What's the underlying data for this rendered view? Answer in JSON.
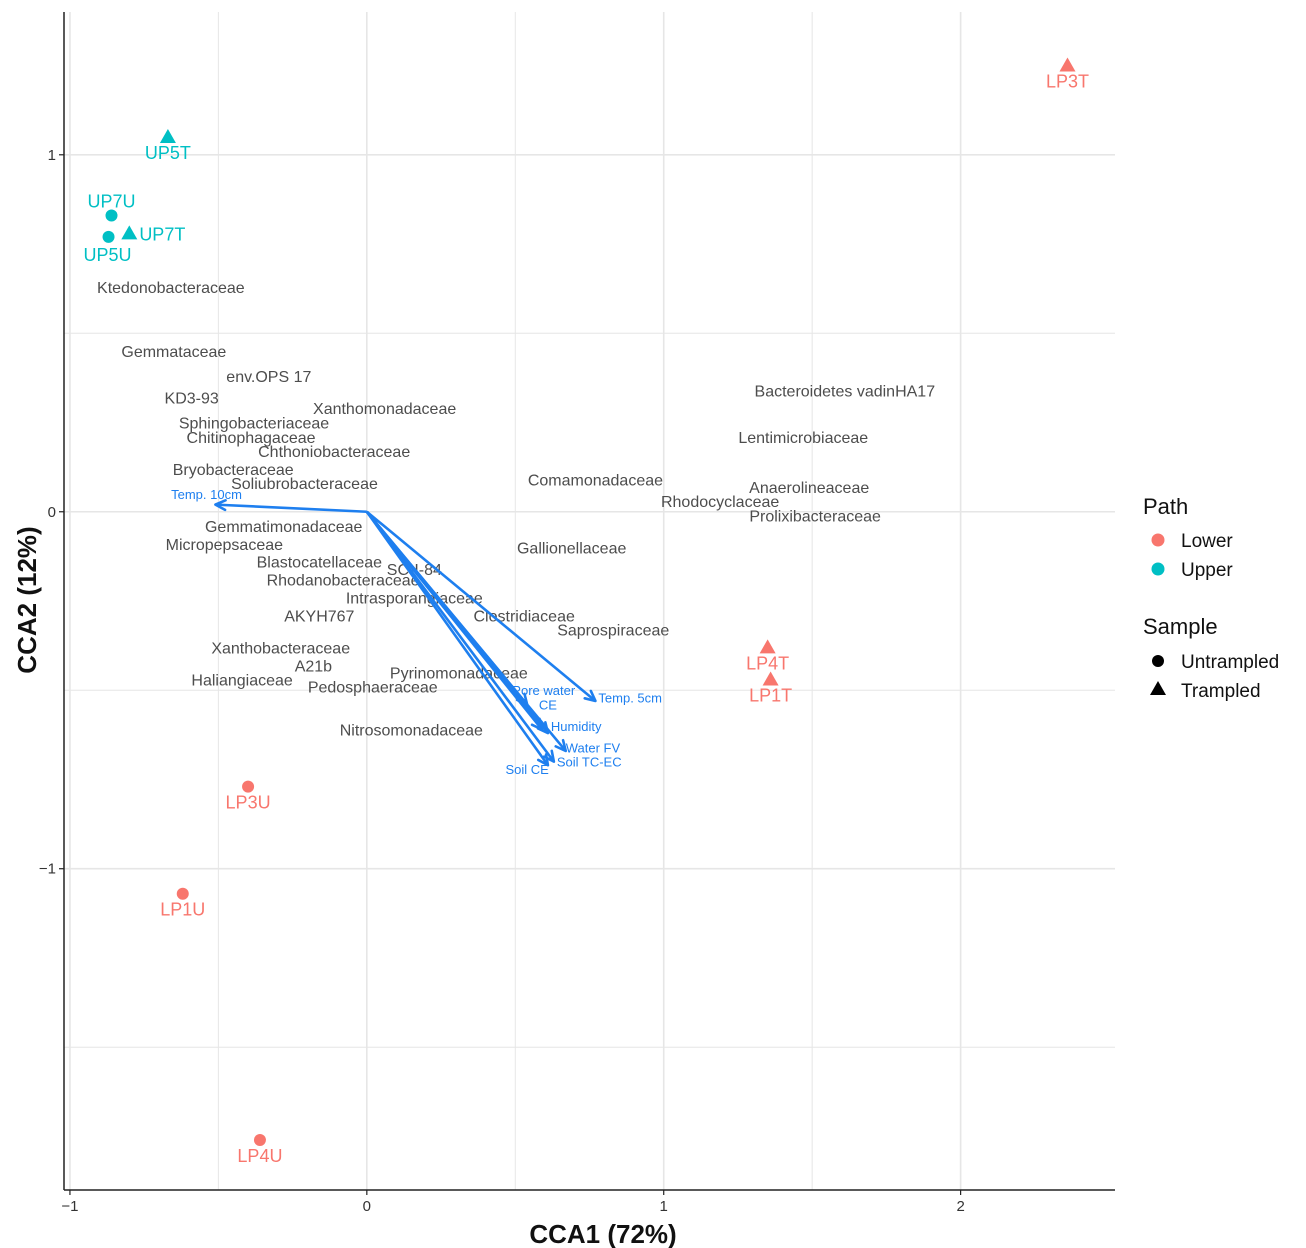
{
  "chart_data": {
    "type": "scatter",
    "xlabel": "CCA1 (72%)",
    "ylabel": "CCA2 (12%)",
    "xlim": [
      -1.02,
      2.52
    ],
    "ylim": [
      -1.9,
      1.4
    ],
    "x_ticks": [
      {
        "value": -1,
        "label": "−1"
      },
      {
        "value": 0,
        "label": "0"
      },
      {
        "value": 1,
        "label": "1"
      },
      {
        "value": 2,
        "label": "2"
      }
    ],
    "y_ticks": [
      {
        "value": -1,
        "label": "−1"
      },
      {
        "value": 0,
        "label": "0"
      },
      {
        "value": 1,
        "label": "1"
      }
    ],
    "x_minor": [
      -0.5,
      0.5,
      1.5
    ],
    "y_minor": [
      -1.5,
      -0.5,
      0.5
    ],
    "grid": true,
    "colors": {
      "Lower": "#F8766D",
      "Upper": "#00BFC4",
      "arrow": "#1E7FEF",
      "taxon": "#4d4d4d",
      "grid": "#e6e6e6"
    },
    "samples": [
      {
        "label": "LP3T",
        "x": 2.36,
        "y": 1.25,
        "path": "Lower",
        "sample": "Trampled"
      },
      {
        "label": "UP5T",
        "x": -0.67,
        "y": 1.05,
        "path": "Upper",
        "sample": "Trampled"
      },
      {
        "label": "UP7U",
        "x": -0.86,
        "y": 0.83,
        "path": "Upper",
        "sample": "Untrampled"
      },
      {
        "label": "UP7T",
        "x": -0.8,
        "y": 0.78,
        "path": "Upper",
        "sample": "Trampled"
      },
      {
        "label": "UP5U",
        "x": -0.87,
        "y": 0.77,
        "path": "Upper",
        "sample": "Untrampled"
      },
      {
        "label": "LP4T",
        "x": 1.35,
        "y": -0.38,
        "path": "Lower",
        "sample": "Trampled"
      },
      {
        "label": "LP1T",
        "x": 1.36,
        "y": -0.47,
        "path": "Lower",
        "sample": "Trampled"
      },
      {
        "label": "LP3U",
        "x": -0.4,
        "y": -0.77,
        "path": "Lower",
        "sample": "Untrampled"
      },
      {
        "label": "LP1U",
        "x": -0.62,
        "y": -1.07,
        "path": "Lower",
        "sample": "Untrampled"
      },
      {
        "label": "LP4U",
        "x": -0.36,
        "y": -1.76,
        "path": "Lower",
        "sample": "Untrampled"
      }
    ],
    "taxa": [
      {
        "label": "Ktedonobacteraceae",
        "x": -0.66,
        "y": 0.63
      },
      {
        "label": "Gemmataceae",
        "x": -0.65,
        "y": 0.45
      },
      {
        "label": "env.OPS 17",
        "x": -0.33,
        "y": 0.38
      },
      {
        "label": "KD3-93",
        "x": -0.59,
        "y": 0.32
      },
      {
        "label": "Xanthomonadaceae",
        "x": 0.06,
        "y": 0.29
      },
      {
        "label": "Sphingobacteriaceae",
        "x": -0.38,
        "y": 0.25
      },
      {
        "label": "Chitinophagaceae",
        "x": -0.39,
        "y": 0.21
      },
      {
        "label": "Chthoniobacteraceae",
        "x": -0.11,
        "y": 0.17
      },
      {
        "label": "Bryobacteraceae",
        "x": -0.45,
        "y": 0.12
      },
      {
        "label": "Soliubrobacteraceae",
        "x": -0.21,
        "y": 0.08
      },
      {
        "label": "Gemmatimonadaceae",
        "x": -0.28,
        "y": -0.04
      },
      {
        "label": "Micropepsaceae",
        "x": -0.48,
        "y": -0.09
      },
      {
        "label": "Blastocatellaceae",
        "x": -0.16,
        "y": -0.14
      },
      {
        "label": "Rhodanobacteraceae",
        "x": -0.08,
        "y": -0.19
      },
      {
        "label": "SC-I-84",
        "x": 0.16,
        "y": -0.16
      },
      {
        "label": "Intrasporangiaceae",
        "x": 0.16,
        "y": -0.24
      },
      {
        "label": "AKYH767",
        "x": -0.16,
        "y": -0.29
      },
      {
        "label": "Clostridiaceae",
        "x": 0.53,
        "y": -0.29
      },
      {
        "label": "Saprospiraceae",
        "x": 0.83,
        "y": -0.33
      },
      {
        "label": "Xanthobacteraceae",
        "x": -0.29,
        "y": -0.38
      },
      {
        "label": "A21b",
        "x": -0.18,
        "y": -0.43
      },
      {
        "label": "Pyrinomonadaceae",
        "x": 0.31,
        "y": -0.45
      },
      {
        "label": "Haliangiaceae",
        "x": -0.42,
        "y": -0.47
      },
      {
        "label": "Pedosphaeraceae",
        "x": 0.02,
        "y": -0.49
      },
      {
        "label": "Nitrosomonadaceae",
        "x": 0.15,
        "y": -0.61
      },
      {
        "label": "Comamonadaceae",
        "x": 0.77,
        "y": 0.09
      },
      {
        "label": "Gallionellaceae",
        "x": 0.69,
        "y": -0.1
      },
      {
        "label": "Bacteroidetes vadinHA17",
        "x": 1.61,
        "y": 0.34
      },
      {
        "label": "Lentimicrobiaceae",
        "x": 1.47,
        "y": 0.21
      },
      {
        "label": "Anaerolineaceae",
        "x": 1.49,
        "y": 0.07
      },
      {
        "label": "Rhodocyclaceae",
        "x": 1.19,
        "y": 0.03
      },
      {
        "label": "Prolixibacteraceae",
        "x": 1.51,
        "y": -0.01
      }
    ],
    "env_vectors": [
      {
        "label": "Temp. 10cm",
        "x": -0.51,
        "y": 0.02,
        "lx": -0.54,
        "ly": 0.05,
        "anchor": "middle"
      },
      {
        "label": "Temp. 5cm",
        "x": 0.77,
        "y": -0.53,
        "lx": 0.78,
        "ly": -0.52,
        "anchor": "start"
      },
      {
        "label": "Pore water",
        "x": 0.54,
        "y": -0.54,
        "lx": 0.49,
        "ly": -0.5,
        "anchor": "start"
      },
      {
        "label": "CE",
        "x": 0.59,
        "y": -0.61,
        "lx": 0.61,
        "ly": -0.54,
        "anchor": "middle"
      },
      {
        "label": "Humidity",
        "x": 0.61,
        "y": -0.62,
        "lx": 0.62,
        "ly": -0.6,
        "anchor": "start"
      },
      {
        "label": "Water FV",
        "x": 0.67,
        "y": -0.67,
        "lx": 0.67,
        "ly": -0.66,
        "anchor": "start"
      },
      {
        "label": "Soil TC-EC",
        "x": 0.63,
        "y": -0.7,
        "lx": 0.64,
        "ly": -0.7,
        "anchor": "start"
      },
      {
        "label": "Soil CE",
        "x": 0.61,
        "y": -0.71,
        "lx": 0.54,
        "ly": -0.72,
        "anchor": "middle"
      }
    ],
    "legend": {
      "placement": "right",
      "path_title": "Path",
      "path_items": [
        {
          "label": "Lower",
          "color": "#F8766D"
        },
        {
          "label": "Upper",
          "color": "#00BFC4"
        }
      ],
      "sample_title": "Sample",
      "sample_items": [
        {
          "label": "Untrampled",
          "shape": "circle"
        },
        {
          "label": "Trampled",
          "shape": "triangle"
        }
      ]
    }
  }
}
